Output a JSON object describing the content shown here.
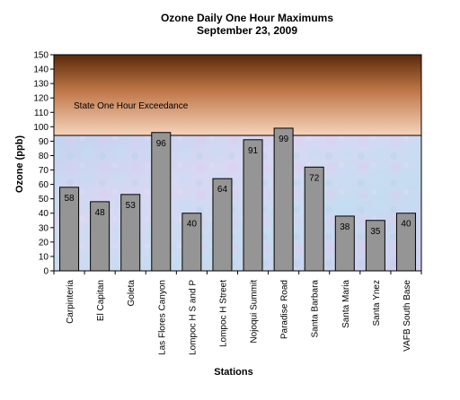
{
  "chart_data": {
    "type": "bar",
    "title": "Ozone Daily One Hour Maximums",
    "subtitle": "September 23, 2009",
    "xlabel": "Stations",
    "ylabel": "Ozone (ppb)",
    "ylim": [
      0,
      150
    ],
    "ytick_step": 10,
    "categories": [
      "Carpinteria",
      "El Capitan",
      "Goleta",
      "Las Flores Canyon",
      "Lompoc H S and P",
      "Lompoc H Street",
      "Nojoqui Summit",
      "Paradise Road",
      "Santa Barbara",
      "Santa Maria",
      "Santa Ynez",
      "VAFB South Base"
    ],
    "values": [
      58,
      48,
      53,
      96,
      40,
      64,
      91,
      99,
      72,
      38,
      35,
      40
    ],
    "threshold": {
      "label": "State One Hour Exceedance",
      "value": 94
    },
    "grid": false,
    "legend": "none",
    "colors": {
      "bar_fill": "#959595",
      "bar_stroke": "#000000",
      "exceedance_top": "#5a2a0c",
      "exceedance_mid": "#c07748",
      "exceedance_bottom": "#f6d4bc",
      "normal_zone": "#c6d6f0"
    }
  }
}
